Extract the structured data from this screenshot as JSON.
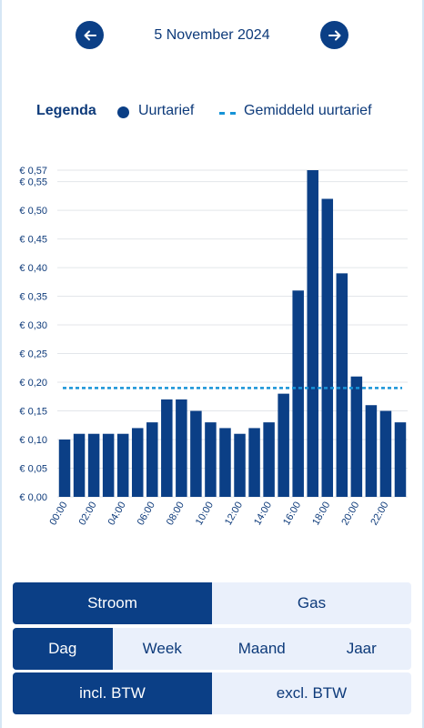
{
  "header": {
    "date": "5 November 2024",
    "prev_icon": "arrow-left-icon",
    "next_icon": "arrow-right-icon"
  },
  "legend": {
    "title": "Legenda",
    "uurtarief": "Uurtarief",
    "gemiddeld": "Gemiddeld uurtarief"
  },
  "colors": {
    "primary": "#0b3f86",
    "average_line": "#1793d7",
    "grid": "#e3e6ea",
    "segment_bg": "#eaf0fb"
  },
  "chart_data": {
    "type": "bar",
    "categories": [
      "00:00",
      "01:00",
      "02:00",
      "03:00",
      "04:00",
      "05:00",
      "06:00",
      "07:00",
      "08:00",
      "09:00",
      "10:00",
      "11:00",
      "12:00",
      "13:00",
      "14:00",
      "15:00",
      "16:00",
      "17:00",
      "18:00",
      "19:00",
      "20:00",
      "21:00",
      "22:00",
      "23:00"
    ],
    "x_tick_labels": [
      "00:00",
      "02:00",
      "04:00",
      "06:00",
      "08:00",
      "10:00",
      "12:00",
      "14:00",
      "16:00",
      "18:00",
      "20:00",
      "22:00"
    ],
    "series": [
      {
        "name": "Uurtarief",
        "values": [
          0.1,
          0.11,
          0.11,
          0.11,
          0.11,
          0.12,
          0.13,
          0.17,
          0.17,
          0.15,
          0.13,
          0.12,
          0.11,
          0.12,
          0.13,
          0.18,
          0.36,
          0.57,
          0.52,
          0.39,
          0.21,
          0.16,
          0.15,
          0.13
        ]
      }
    ],
    "average": 0.19,
    "y_ticks": [
      0.0,
      0.05,
      0.1,
      0.15,
      0.2,
      0.25,
      0.3,
      0.35,
      0.4,
      0.45,
      0.5,
      0.55,
      0.57
    ],
    "y_tick_labels": [
      "€ 0,00",
      "€ 0,05",
      "€ 0,10",
      "€ 0,15",
      "€ 0,20",
      "€ 0,25",
      "€ 0,30",
      "€ 0,35",
      "€ 0,40",
      "€ 0,45",
      "€ 0,50",
      "€ 0,55",
      "€ 0,57"
    ],
    "ylim": [
      0,
      0.57
    ],
    "grid": true
  },
  "controls": {
    "energy": [
      {
        "label": "Stroom",
        "active": true
      },
      {
        "label": "Gas",
        "active": false
      }
    ],
    "period": [
      {
        "label": "Dag",
        "active": true
      },
      {
        "label": "Week",
        "active": false
      },
      {
        "label": "Maand",
        "active": false
      },
      {
        "label": "Jaar",
        "active": false
      }
    ],
    "vat": [
      {
        "label": "incl. BTW",
        "active": true
      },
      {
        "label": "excl. BTW",
        "active": false
      }
    ]
  }
}
